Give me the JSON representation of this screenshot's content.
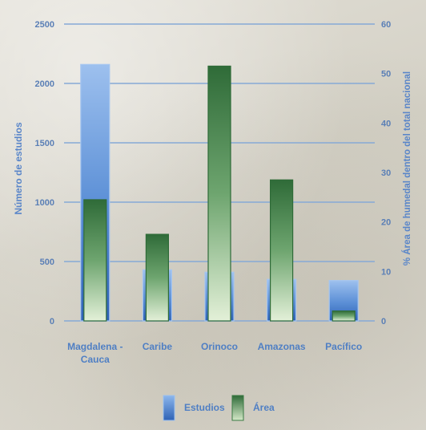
{
  "chart_data": {
    "type": "bar",
    "categories": [
      "Magdalena - Cauca",
      "Caribe",
      "Orinoco",
      "Amazonas",
      "Pacífico"
    ],
    "category_lines": [
      [
        "Magdalena -",
        "Cauca"
      ],
      [
        "Caribe"
      ],
      [
        "Orinoco"
      ],
      [
        "Amazonas"
      ],
      [
        "Pacífico"
      ]
    ],
    "series": [
      {
        "name": "Estudios",
        "axis": "left",
        "values": [
          2160,
          430,
          410,
          350,
          340
        ],
        "color": "#3f74c4"
      },
      {
        "name": "Área",
        "axis": "right",
        "values": [
          24.5,
          17.5,
          51.5,
          28.5,
          2
        ],
        "color": "#3f7a45"
      }
    ],
    "ylabel": "Número de estudios",
    "y2label": "% Área de humedal dentro del total nacional",
    "ylim": [
      0,
      2500
    ],
    "y2lim": [
      0,
      60
    ],
    "yticks": [
      0,
      500,
      1000,
      1500,
      2000,
      2500
    ],
    "y2ticks": [
      0,
      10,
      20,
      30,
      40,
      50,
      60
    ],
    "grid": true,
    "legend_position": "bottom"
  }
}
